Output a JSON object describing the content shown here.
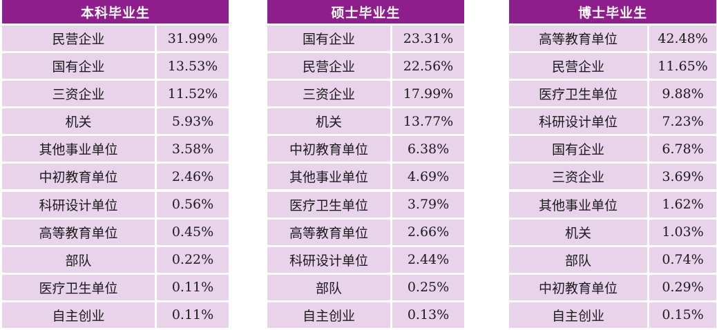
{
  "tables": [
    {
      "title": "本科毕业生",
      "rows": [
        {
          "label": "民营企业",
          "value": "31.99%"
        },
        {
          "label": "国有企业",
          "value": "13.53%"
        },
        {
          "label": "三资企业",
          "value": "11.52%"
        },
        {
          "label": "机关",
          "value": "5.93%"
        },
        {
          "label": "其他事业单位",
          "value": "3.58%"
        },
        {
          "label": "中初教育单位",
          "value": "2.46%"
        },
        {
          "label": "科研设计单位",
          "value": "0.56%"
        },
        {
          "label": "高等教育单位",
          "value": "0.45%"
        },
        {
          "label": "部队",
          "value": "0.22%"
        },
        {
          "label": "医疗卫生单位",
          "value": "0.11%"
        },
        {
          "label": "自主创业",
          "value": "0.11%"
        }
      ]
    },
    {
      "title": "硕士毕业生",
      "rows": [
        {
          "label": "国有企业",
          "value": "23.31%"
        },
        {
          "label": "民营企业",
          "value": "22.56%"
        },
        {
          "label": "三资企业",
          "value": "17.99%"
        },
        {
          "label": "机关",
          "value": "13.77%"
        },
        {
          "label": "中初教育单位",
          "value": "6.38%"
        },
        {
          "label": "其他事业单位",
          "value": "4.69%"
        },
        {
          "label": "医疗卫生单位",
          "value": "3.79%"
        },
        {
          "label": "高等教育单位",
          "value": "2.66%"
        },
        {
          "label": "科研设计单位",
          "value": "2.44%"
        },
        {
          "label": "部队",
          "value": "0.25%"
        },
        {
          "label": "自主创业",
          "value": "0.13%"
        }
      ]
    },
    {
      "title": "博士毕业生",
      "rows": [
        {
          "label": "高等教育单位",
          "value": "42.48%"
        },
        {
          "label": "民营企业",
          "value": "11.65%"
        },
        {
          "label": "医疗卫生单位",
          "value": "9.88%"
        },
        {
          "label": "科研设计单位",
          "value": "7.23%"
        },
        {
          "label": "国有企业",
          "value": "6.78%"
        },
        {
          "label": "三资企业",
          "value": "3.69%"
        },
        {
          "label": "其他事业单位",
          "value": "1.62%"
        },
        {
          "label": "机关",
          "value": "1.03%"
        },
        {
          "label": "部队",
          "value": "0.74%"
        },
        {
          "label": "中初教育单位",
          "value": "0.29%"
        },
        {
          "label": "自主创业",
          "value": "0.15%"
        }
      ]
    }
  ],
  "colors": {
    "header_bg": "#8e1e8c",
    "header_text": "#ffffff",
    "cell_bg": "#e9d3ea",
    "cell_text": "#1a1a1a"
  }
}
